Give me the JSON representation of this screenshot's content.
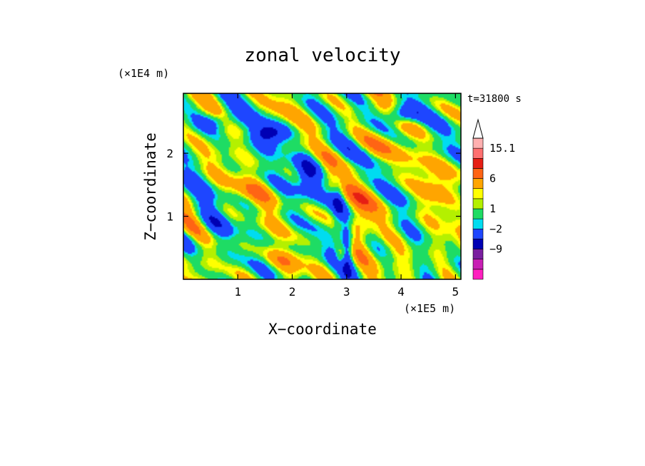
{
  "chart_data": {
    "type": "heatmap",
    "title": "zonal velocity",
    "time_label": "t=31800 s",
    "xlabel": "X−coordinate",
    "ylabel": "Z−coordinate",
    "x_unit": "(×1E5 m)",
    "y_unit": "(×1E4 m)",
    "xlim": [
      0,
      5.1
    ],
    "ylim": [
      0,
      2.95
    ],
    "x_ticks": [
      {
        "value": 1,
        "label": "1"
      },
      {
        "value": 2,
        "label": "2"
      },
      {
        "value": 3,
        "label": "3"
      },
      {
        "value": 4,
        "label": "4"
      },
      {
        "value": 5,
        "label": "5"
      }
    ],
    "y_ticks": [
      {
        "value": 1,
        "label": "1"
      },
      {
        "value": 2,
        "label": "2"
      }
    ],
    "colorbar": {
      "levels": [
        -15.1,
        -12,
        -9,
        -6,
        -2,
        -1,
        1,
        2,
        3,
        6,
        9,
        12,
        15.1
      ],
      "colors": [
        "#ff1fbf",
        "#c81eb4",
        "#7a1ea0",
        "#0000b4",
        "#1e46ff",
        "#00dcf0",
        "#1edc64",
        "#b4f000",
        "#ffff00",
        "#ffa500",
        "#ff6414",
        "#e61e14",
        "#ff7070",
        "#ffb0b0"
      ],
      "labels": [
        {
          "value": 15.1,
          "label": "15.1"
        },
        {
          "value": 6,
          "label": "6"
        },
        {
          "value": 1,
          "label": "1"
        },
        {
          "value": -2,
          "label": "−2"
        },
        {
          "value": -9,
          "label": "−9"
        }
      ],
      "extend": "max"
    }
  }
}
